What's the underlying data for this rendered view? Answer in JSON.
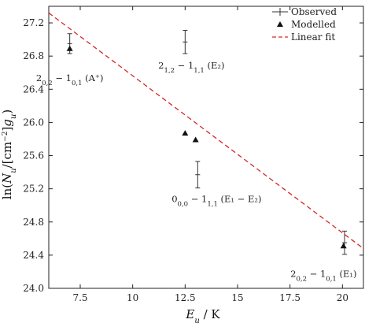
{
  "chart_data": {
    "type": "scatter",
    "xlabel": "E_u / K",
    "ylabel": "ln(N_u/[cm^-2]g_u)",
    "xlim": [
      6.0,
      21.0
    ],
    "ylim": [
      24.0,
      27.4
    ],
    "x_ticks": [
      7.5,
      10,
      12.5,
      15,
      17.5,
      20
    ],
    "x_tick_labels": [
      "7.5",
      "10",
      "12.5",
      "15",
      "17.5",
      "20"
    ],
    "y_ticks": [
      24.0,
      24.4,
      24.8,
      25.2,
      25.6,
      26.0,
      26.4,
      26.8,
      27.2
    ],
    "y_tick_labels": [
      "24.0",
      "24.4",
      "24.8",
      "25.2",
      "25.6",
      "26.0",
      "26.4",
      "26.8",
      "27.2"
    ],
    "grid": false,
    "legend_position": "top-right",
    "series": [
      {
        "name": "Observed",
        "marker": "errorbar",
        "color": "#333333",
        "points": [
          {
            "x": 7.0,
            "y": 26.95,
            "yerr": 0.12
          },
          {
            "x": 12.5,
            "y": 26.97,
            "yerr": 0.14
          },
          {
            "x": 13.1,
            "y": 25.37,
            "yerr": 0.16
          },
          {
            "x": 20.1,
            "y": 24.55,
            "yerr": 0.14
          }
        ]
      },
      {
        "name": "Modelled",
        "marker": "triangle",
        "color": "#111111",
        "points": [
          {
            "x": 7.0,
            "y": 26.89
          },
          {
            "x": 12.5,
            "y": 25.87
          },
          {
            "x": 13.0,
            "y": 25.79
          },
          {
            "x": 20.05,
            "y": 24.51
          }
        ]
      },
      {
        "name": "Linear fit",
        "marker": "dashed-line",
        "color": "#d62728",
        "points": [
          {
            "x": 6.0,
            "y": 27.32
          },
          {
            "x": 21.0,
            "y": 24.48
          }
        ]
      }
    ],
    "annotations": [
      {
        "text": "2_{0,2} − 1_{0,1} (A⁺)",
        "x": 7.0,
        "y": 26.5,
        "anchor": "center"
      },
      {
        "text": "2_{1,2} − 1_{1,1} (E₂)",
        "x": 12.8,
        "y": 26.65,
        "anchor": "center"
      },
      {
        "text": "0_{0,0} − 1_{1,1} (E₁ − E₂)",
        "x": 14.0,
        "y": 25.04,
        "anchor": "center"
      },
      {
        "text": "2_{0,2} − 1_{0,1} (E₁)",
        "x": 19.1,
        "y": 24.14,
        "anchor": "center"
      }
    ]
  },
  "legend": {
    "observed_label": "Observed",
    "modelled_label": "Modelled",
    "linear_fit_label": "Linear fit"
  }
}
